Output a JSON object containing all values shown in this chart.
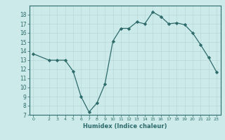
{
  "x": [
    0,
    2,
    3,
    4,
    5,
    6,
    7,
    8,
    9,
    10,
    11,
    12,
    13,
    14,
    15,
    16,
    17,
    18,
    19,
    20,
    21,
    22,
    23
  ],
  "y": [
    13.7,
    13.0,
    13.0,
    13.0,
    11.8,
    9.0,
    7.3,
    8.3,
    10.4,
    15.1,
    16.5,
    16.5,
    17.2,
    17.0,
    18.3,
    17.8,
    17.0,
    17.1,
    16.9,
    16.0,
    14.7,
    13.3,
    11.7
  ],
  "xlim": [
    -0.5,
    23.5
  ],
  "ylim": [
    7,
    19
  ],
  "yticks": [
    7,
    8,
    9,
    10,
    11,
    12,
    13,
    14,
    15,
    16,
    17,
    18
  ],
  "xticks": [
    0,
    2,
    3,
    4,
    5,
    6,
    7,
    8,
    9,
    10,
    11,
    12,
    13,
    14,
    15,
    16,
    17,
    18,
    19,
    20,
    21,
    22,
    23
  ],
  "xlabel": "Humidex (Indice chaleur)",
  "line_color": "#2e6b6b",
  "marker": "D",
  "marker_size": 2.2,
  "bg_color": "#cceaea",
  "grid_major_color": "#b8d8d8",
  "grid_minor_color": "#c8e4e4",
  "tick_color": "#2e6b6b",
  "label_color": "#2e6b6b",
  "spine_color": "#2e6b6b"
}
